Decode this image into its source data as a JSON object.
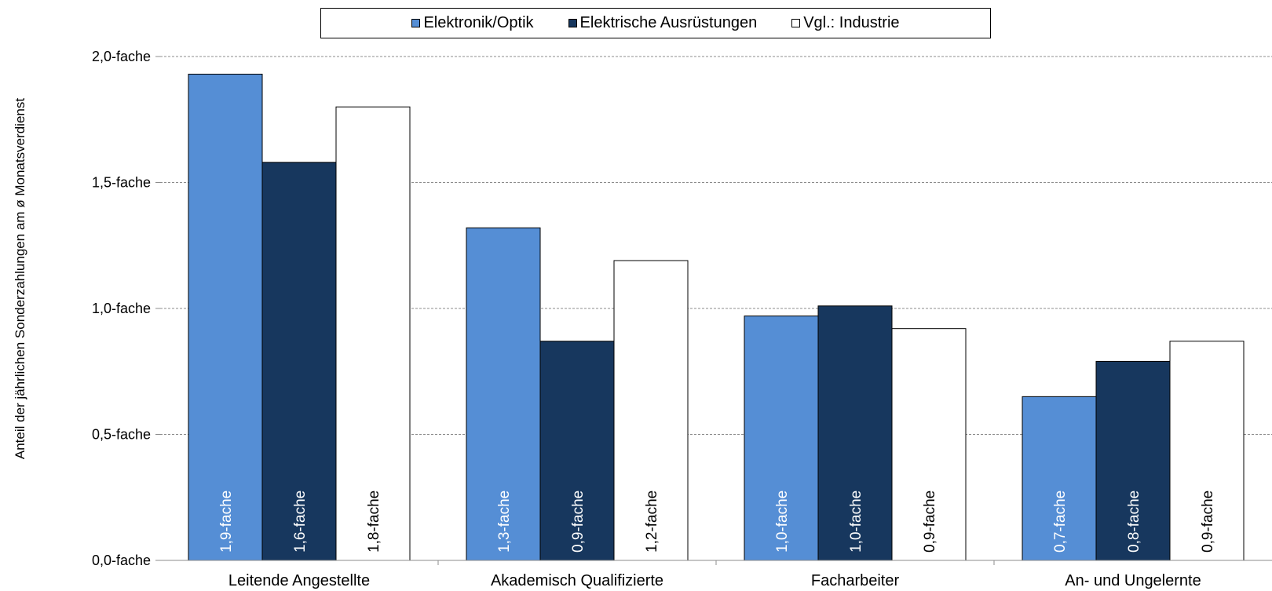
{
  "chart_data": {
    "type": "bar",
    "ylabel": "Anteil der jährlichen Sonderzahlungen am ø Monatsverdienst",
    "xlabel": "",
    "ylim": [
      0,
      2.0
    ],
    "yticks": [
      {
        "value": 0.0,
        "label": "0,0-fache"
      },
      {
        "value": 0.5,
        "label": "0,5-fache"
      },
      {
        "value": 1.0,
        "label": "1,0-fache"
      },
      {
        "value": 1.5,
        "label": "1,5-fache"
      },
      {
        "value": 2.0,
        "label": "2,0-fache"
      }
    ],
    "grid": true,
    "legend_position": "top-center",
    "categories": [
      "Leitende Angestellte",
      "Akademisch Qualifizierte",
      "Facharbeiter",
      "An- und Ungelernte"
    ],
    "series": [
      {
        "name": "Elektronik/Optik",
        "color": "#558ED5",
        "label_color": "#ffffff",
        "values": [
          1.93,
          1.32,
          0.97,
          0.65
        ],
        "labels": [
          "1,9-fache",
          "1,3-fache",
          "1,0-fache",
          "0,7-fache"
        ]
      },
      {
        "name": "Elektrische Ausrüstungen",
        "color": "#17375E",
        "label_color": "#ffffff",
        "values": [
          1.58,
          0.87,
          1.01,
          0.79
        ],
        "labels": [
          "1,6-fache",
          "0,9-fache",
          "1,0-fache",
          "0,8-fache"
        ]
      },
      {
        "name": "Vgl.: Industrie",
        "color": "#ffffff",
        "label_color": "#000000",
        "values": [
          1.8,
          1.19,
          0.92,
          0.87
        ],
        "labels": [
          "1,8-fache",
          "1,2-fache",
          "0,9-fache",
          "0,9-fache"
        ]
      }
    ]
  }
}
